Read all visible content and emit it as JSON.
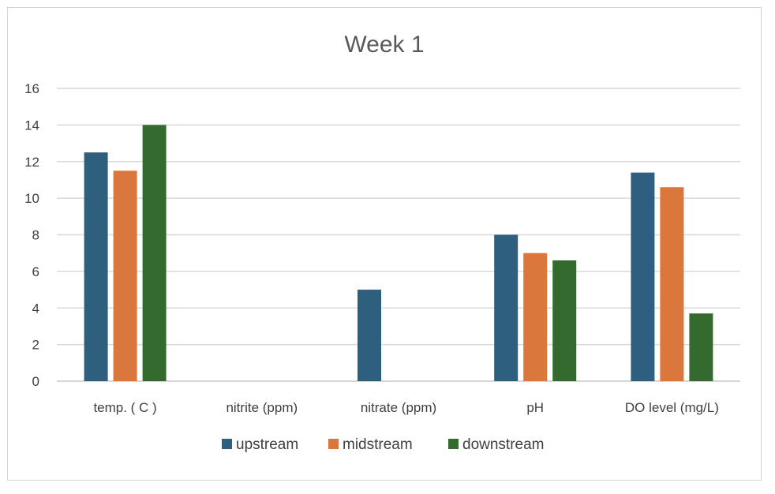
{
  "chart_data": {
    "type": "bar",
    "title": "Week 1",
    "xlabel": "",
    "ylabel": "",
    "ylim": [
      0,
      16
    ],
    "yticks": [
      "0",
      "2",
      "4",
      "6",
      "8",
      "10",
      "12",
      "14",
      "16"
    ],
    "grid": true,
    "legend_position": "bottom",
    "categories": [
      "temp. ( C )",
      "nitrite (ppm)",
      "nitrate (ppm)",
      "pH",
      "DO level (mg/L)"
    ],
    "series": [
      {
        "name": "upstream",
        "color": "#2E5F7F",
        "values": [
          12.5,
          0,
          5,
          8,
          11.4
        ]
      },
      {
        "name": "midstream",
        "color": "#D9773D",
        "values": [
          11.5,
          0,
          0,
          7,
          10.6
        ]
      },
      {
        "name": "downstream",
        "color": "#336B2E",
        "values": [
          14,
          0,
          0,
          6.6,
          3.7
        ]
      }
    ]
  }
}
